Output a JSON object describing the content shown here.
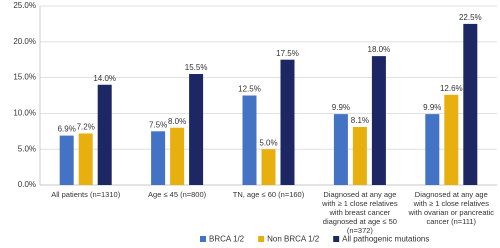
{
  "chart_data": {
    "type": "bar",
    "categories": [
      "All patients (n=1310)",
      "Age ≤ 45 (n=800)",
      "TN, age  ≤ 60 (n=160)",
      "Diagnosed at any age with ≥ 1 close relatives with breast cancer diagnosed at age ≤ 50 (n=372)",
      "Diagnosed at any age with ≥ 1  close relatives with ovarian or pancreatic cancer (n=111)"
    ],
    "series": [
      {
        "name": "BRCA 1/2",
        "color": "#4472c4",
        "values": [
          6.9,
          7.5,
          12.5,
          9.9,
          9.9
        ],
        "value_labels": [
          "6.9%",
          "7.5%",
          "12.5%",
          "9.9%",
          "9.9%"
        ]
      },
      {
        "name": "Non BRCA 1/2",
        "color": "#e8b00f",
        "values": [
          7.2,
          8.0,
          5.0,
          8.1,
          12.6
        ],
        "value_labels": [
          "7.2%",
          "8.0%",
          "5.0%",
          "8.1%",
          "12.6%"
        ]
      },
      {
        "name": "All pathogenic mutations",
        "color": "#1c2763",
        "values": [
          14.0,
          15.5,
          17.5,
          18.0,
          22.5
        ],
        "value_labels": [
          "14.0%",
          "15.5%",
          "17.5%",
          "18.0%",
          "22.5%"
        ]
      }
    ],
    "ylim": [
      0,
      25
    ],
    "yticks": [
      {
        "value": 0,
        "label": "0.0%"
      },
      {
        "value": 5,
        "label": "5.0%"
      },
      {
        "value": 10,
        "label": "10.0%"
      },
      {
        "value": 15,
        "label": "15.0%"
      },
      {
        "value": 20,
        "label": "20.0%"
      },
      {
        "value": 25,
        "label": "25.0%"
      }
    ],
    "grid": true,
    "legend": "bottom"
  }
}
